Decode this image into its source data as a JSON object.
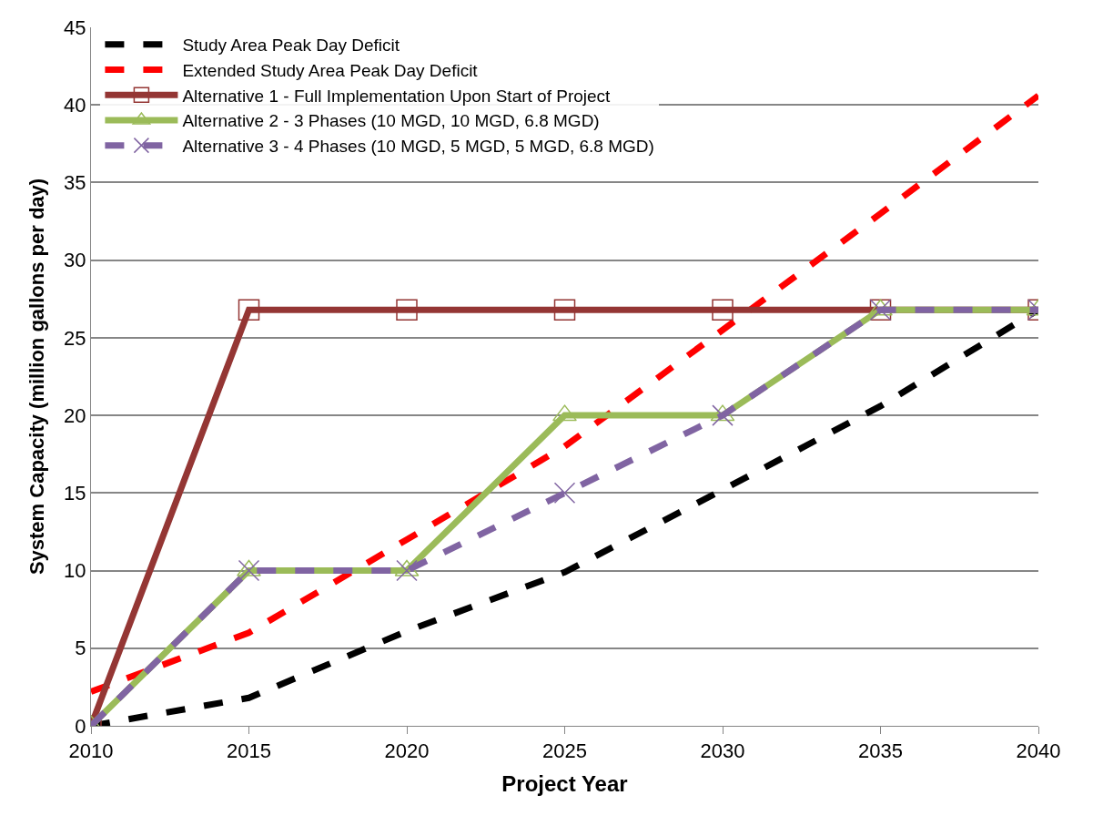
{
  "chart_data": {
    "type": "line",
    "xlabel": "Project Year",
    "ylabel": "System Capacity (million gallons per day)",
    "x": [
      2010,
      2015,
      2020,
      2025,
      2030,
      2035,
      2040
    ],
    "xlim": [
      2010,
      2040
    ],
    "xticks": [
      2010,
      2015,
      2020,
      2025,
      2030,
      2035,
      2040
    ],
    "ylim": [
      0,
      45
    ],
    "yticks": [
      0,
      5,
      10,
      15,
      20,
      25,
      30,
      35,
      40,
      45
    ],
    "grid": "y",
    "legend": "top left",
    "series": [
      {
        "name": "Study Area Peak Day Deficit",
        "color": "#000000",
        "line_style": "dashed",
        "marker": "none",
        "values": [
          0,
          1.8,
          6.1,
          9.9,
          15.2,
          20.6,
          26.8
        ]
      },
      {
        "name": "Extended Study Area Peak Day Deficit",
        "color": "#ff0000",
        "line_style": "dashed",
        "marker": "none",
        "values": [
          2.2,
          6.0,
          12.0,
          18.0,
          25.5,
          33.0,
          40.6
        ]
      },
      {
        "name": "Alternative 1 - Full Implementation Upon Start of Project",
        "color": "#943634",
        "line_style": "solid",
        "marker": "square",
        "values": [
          0,
          26.8,
          26.8,
          26.8,
          26.8,
          26.8,
          26.8
        ]
      },
      {
        "name": "Alternative 2 - 3 Phases (10 MGD, 10 MGD, 6.8 MGD)",
        "color": "#9bbb59",
        "line_style": "solid",
        "marker": "triangle",
        "values": [
          0,
          10,
          10,
          20,
          20,
          26.8,
          26.8
        ]
      },
      {
        "name": "Alternative 3 - 4 Phases (10 MGD, 5 MGD, 5 MGD, 6.8 MGD)",
        "color": "#8064a2",
        "line_style": "dashed",
        "marker": "cross",
        "values": [
          0,
          10,
          10,
          15,
          20,
          26.8,
          26.8
        ]
      }
    ]
  }
}
